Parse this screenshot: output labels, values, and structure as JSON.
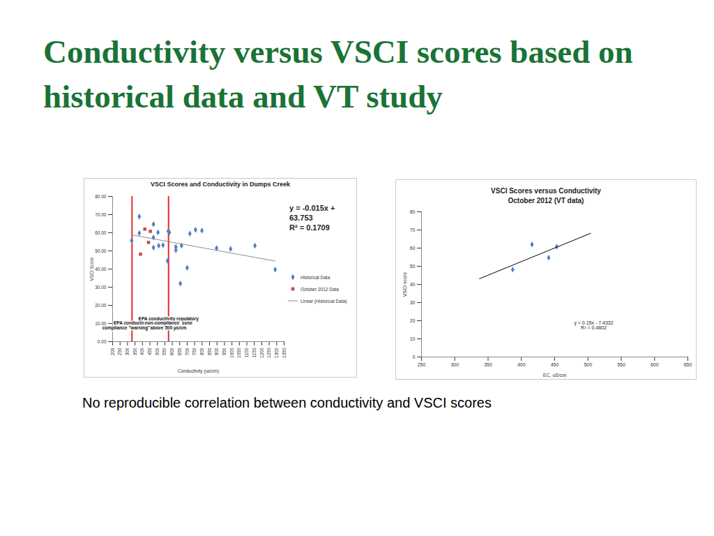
{
  "slide": {
    "title": "Conductivity versus VSCI scores based on historical data and VT study",
    "caption": "No reproducible correlation between conductivity and VSCI scores"
  },
  "chart_data": [
    {
      "type": "scatter",
      "title": "VSCI Scores and Conductivity in Dumps Creek",
      "x_label": "Conductivity (us/cm)",
      "y_label": "VSCI Score",
      "xlim": [
        200,
        1350
      ],
      "xticks": [
        200,
        250,
        300,
        350,
        400,
        450,
        500,
        550,
        600,
        650,
        700,
        750,
        800,
        850,
        900,
        950,
        1000,
        1050,
        1100,
        1150,
        1200,
        1250,
        1300,
        1350
      ],
      "ylim": [
        0,
        80
      ],
      "yticks": [
        {
          "value": 0,
          "label": "0.00"
        },
        {
          "value": 10,
          "label": "10.00"
        },
        {
          "value": 20,
          "label": "20.00"
        },
        {
          "value": 30,
          "label": "30.00"
        },
        {
          "value": 40,
          "label": "40.00"
        },
        {
          "value": 50,
          "label": "50.00"
        },
        {
          "value": 60,
          "label": "60.00"
        },
        {
          "value": 70,
          "label": "70.00"
        },
        {
          "value": 80,
          "label": "80.00"
        }
      ],
      "grid": false,
      "legend": "right",
      "series": [
        {
          "name": "Historical Data",
          "type": "scatter",
          "color": "#4f81bd",
          "marker": "diamond",
          "x": [
            379,
            379,
            328,
            474,
            474,
            474,
            504,
            509,
            538,
            568,
            573,
            581,
            624,
            624,
            662,
            654,
            700,
            718,
            756,
            799,
            897,
            991,
            1154,
            1290
          ],
          "values": [
            68.9,
            59.8,
            55.7,
            64.7,
            57.4,
            51.8,
            60.2,
            52.9,
            53.2,
            44.5,
            60.9,
            60.2,
            52.2,
            50.4,
            52.9,
            32.0,
            40.7,
            59.5,
            61.6,
            61.2,
            51.5,
            51.1,
            52.9,
            39.7
          ]
        },
        {
          "name": "October 2012 Data",
          "type": "scatter",
          "color": "#c0504d",
          "marker": "square",
          "x": [
            387,
            416,
            441,
            453
          ],
          "values": [
            48.2,
            62.0,
            54.7,
            60.8
          ]
        },
        {
          "name": "Linear (Historical Data)",
          "type": "line",
          "color": "#8c8c8c",
          "line_style": "solid",
          "x": [
            328,
            1290
          ],
          "values": [
            58.83,
            44.4
          ]
        }
      ],
      "equation_text": [
        "y = -0.015x + 63.753",
        "R² = 0.1709"
      ],
      "annotations": [
        {
          "x": 330,
          "color": "#e02b2b",
          "text": "EPA conductivity\ncompliance \"warning\" zone"
        },
        {
          "x": 575,
          "color": "#e02b2b",
          "text": "EPA conductivity regulatory\nnon-compliance  zone\nabove 500 µs/cm"
        }
      ]
    },
    {
      "type": "scatter",
      "title": "VSCI Scores versus Conductivity",
      "subtitle": "October 2012 (VT data)",
      "x_label": "EC, uS/cm",
      "y_label": "VSCI score",
      "xlim": [
        250,
        650
      ],
      "xticks": [
        250,
        300,
        350,
        400,
        450,
        500,
        550,
        600,
        650
      ],
      "ylim": [
        0,
        80
      ],
      "yticks": [
        0,
        10,
        20,
        30,
        40,
        50,
        60,
        70,
        80
      ],
      "grid": false,
      "series": [
        {
          "type": "scatter",
          "color": "#4f81bd",
          "marker": "diamond",
          "x": [
            387,
            416,
            441,
            453
          ],
          "values": [
            48.2,
            62.0,
            54.7,
            60.8
          ]
        },
        {
          "type": "line",
          "color": "#000000",
          "line_style": "solid",
          "x": [
            337,
            504
          ],
          "values": [
            43.12,
            68.17
          ]
        }
      ],
      "equation_text": [
        "y = 0.15x - 7.4332",
        "R² = 0.4602"
      ]
    }
  ]
}
